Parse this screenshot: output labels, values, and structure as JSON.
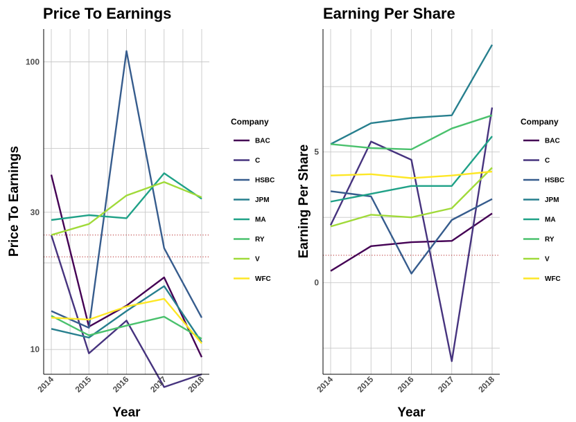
{
  "companies": [
    "BAC",
    "C",
    "HSBC",
    "JPM",
    "MA",
    "RY",
    "V",
    "WFC"
  ],
  "colors": [
    "#440154",
    "#46337e",
    "#365c8d",
    "#277f8e",
    "#1fa187",
    "#4ac16d",
    "#a0da39",
    "#fde725"
  ],
  "chart_data": [
    {
      "type": "line",
      "title": "Price To Earnings",
      "xlabel": "Year",
      "ylabel": "Price To Earnings",
      "x": [
        "2014",
        "2015",
        "2016",
        "2017",
        "2018"
      ],
      "y_scale": "log",
      "ylim": [
        8.2,
        130
      ],
      "yticks": [
        10,
        30,
        100
      ],
      "grid": true,
      "reference_lines": [
        25,
        21
      ],
      "legend": {
        "title": "Company",
        "position": "right"
      },
      "series": [
        {
          "name": "BAC",
          "values": [
            40.5,
            12.0,
            14.2,
            17.8,
            9.4
          ]
        },
        {
          "name": "C",
          "values": [
            25.0,
            9.7,
            12.6,
            7.4,
            8.2
          ]
        },
        {
          "name": "HSBC",
          "values": [
            13.6,
            11.9,
            109.0,
            22.5,
            12.9
          ]
        },
        {
          "name": "JPM",
          "values": [
            11.8,
            11.0,
            13.6,
            16.6,
            10.6
          ]
        },
        {
          "name": "MA",
          "values": [
            28.2,
            29.3,
            28.6,
            41.0,
            33.4
          ]
        },
        {
          "name": "RY",
          "values": [
            13.1,
            11.2,
            12.1,
            13.0,
            10.9
          ]
        },
        {
          "name": "V",
          "values": [
            25.0,
            27.3,
            34.3,
            38.2,
            33.8
          ]
        },
        {
          "name": "WFC",
          "values": [
            12.9,
            12.7,
            14.1,
            15.0,
            10.5
          ]
        }
      ]
    },
    {
      "type": "line",
      "title": "Earning Per Share",
      "xlabel": "Year",
      "ylabel": "Earning Per Share",
      "x": [
        "2014",
        "2015",
        "2016",
        "2017",
        "2018"
      ],
      "ylim": [
        -3.5,
        9.7
      ],
      "yticks": [
        0,
        5
      ],
      "grid": true,
      "reference_lines": [
        1.05
      ],
      "legend": {
        "title": "Company",
        "position": "right"
      },
      "series": [
        {
          "name": "BAC",
          "values": [
            0.45,
            1.4,
            1.55,
            1.6,
            2.65
          ]
        },
        {
          "name": "C",
          "values": [
            2.2,
            5.4,
            4.7,
            -3.0,
            6.7
          ]
        },
        {
          "name": "HSBC",
          "values": [
            3.5,
            3.3,
            0.35,
            2.4,
            3.2
          ]
        },
        {
          "name": "JPM",
          "values": [
            5.3,
            6.1,
            6.3,
            6.4,
            9.1
          ]
        },
        {
          "name": "MA",
          "values": [
            3.1,
            3.4,
            3.7,
            3.7,
            5.6
          ]
        },
        {
          "name": "RY",
          "values": [
            5.3,
            5.15,
            5.1,
            5.9,
            6.4
          ]
        },
        {
          "name": "V",
          "values": [
            2.15,
            2.6,
            2.5,
            2.85,
            4.4
          ]
        },
        {
          "name": "WFC",
          "values": [
            4.1,
            4.15,
            4.0,
            4.1,
            4.25
          ]
        }
      ]
    }
  ]
}
